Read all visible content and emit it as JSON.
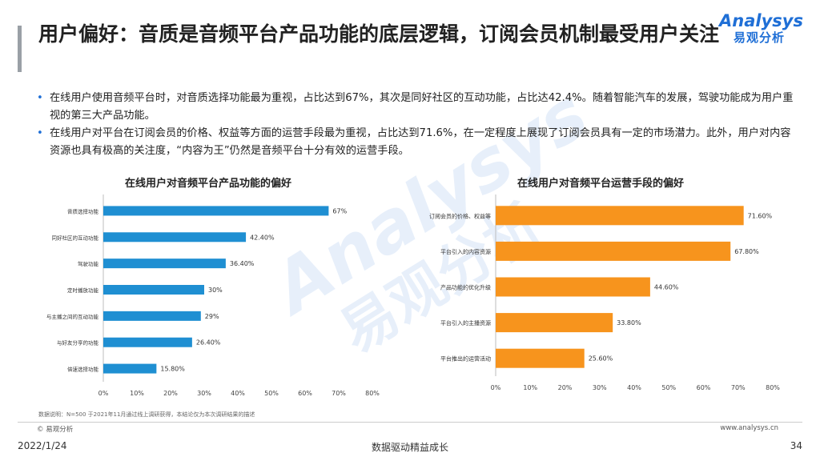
{
  "header": {
    "title": "用户偏好：音质是音频平台产品功能的底层逻辑，订阅会员机制最受用户关注",
    "logo_en": "Analysys",
    "logo_cn": "易观分析"
  },
  "bullets": [
    "在线用户使用音频平台时，对音质选择功能最为重视，占比达到67%，其次是同好社区的互动功能，占比达42.4%。随着智能汽车的发展，驾驶功能成为用户重视的第三大产品功能。",
    "在线用户对平台在订阅会员的价格、权益等方面的运营手段最为重视，占比达到71.6%，在一定程度上展现了订阅会员具有一定的市场潜力。此外，用户对内容资源也具有极高的关注度，“内容为王”仍然是音频平台十分有效的运营手段。"
  ],
  "colors": {
    "blue": "#1f8fd2",
    "orange": "#f7941d",
    "brand_blue": "#1f6fd6"
  },
  "chart_data": [
    {
      "type": "bar",
      "orientation": "horizontal",
      "title": "在线用户对音频平台产品功能的偏好",
      "categories": [
        "音质选择功能",
        "同好社区的互动功能",
        "驾驶功能",
        "定时播放功能",
        "与主播之间的互动功能",
        "与好友分享的功能",
        "倍速选择功能"
      ],
      "values": [
        67,
        42.4,
        36.4,
        30,
        29,
        26.4,
        15.8
      ],
      "value_labels": [
        "67%",
        "42.40%",
        "36.40%",
        "30%",
        "29%",
        "26.40%",
        "15.80%"
      ],
      "ticks": [
        "0%",
        "10%",
        "20%",
        "30%",
        "40%",
        "50%",
        "60%",
        "70%",
        "80%"
      ],
      "xlim": [
        0,
        80
      ],
      "color": "#1f8fd2",
      "grid": false
    },
    {
      "type": "bar",
      "orientation": "horizontal",
      "title": "在线用户对音频平台运营手段的偏好",
      "categories": [
        "订阅会员的价格、权益等",
        "平台引入的内容资源",
        "产品功能的优化升级",
        "平台引入的主播资源",
        "平台推出的运营活动"
      ],
      "values": [
        71.6,
        67.8,
        44.6,
        33.8,
        25.6
      ],
      "value_labels": [
        "71.60%",
        "67.80%",
        "44.60%",
        "33.80%",
        "25.60%"
      ],
      "ticks": [
        "0%",
        "10%",
        "20%",
        "30%",
        "40%",
        "50%",
        "60%",
        "70%",
        "80%"
      ],
      "xlim": [
        0,
        80
      ],
      "color": "#f7941d",
      "grid": false
    }
  ],
  "footer": {
    "note": "数据说明：N=500 于2021年11月通过线上调研获得，本结论仅为本次调研结果的描述",
    "copyright": "© 易观分析",
    "website": "www.analysys.cn",
    "date": "2022/1/24",
    "slogan": "数据驱动精益成长",
    "page": "34"
  }
}
